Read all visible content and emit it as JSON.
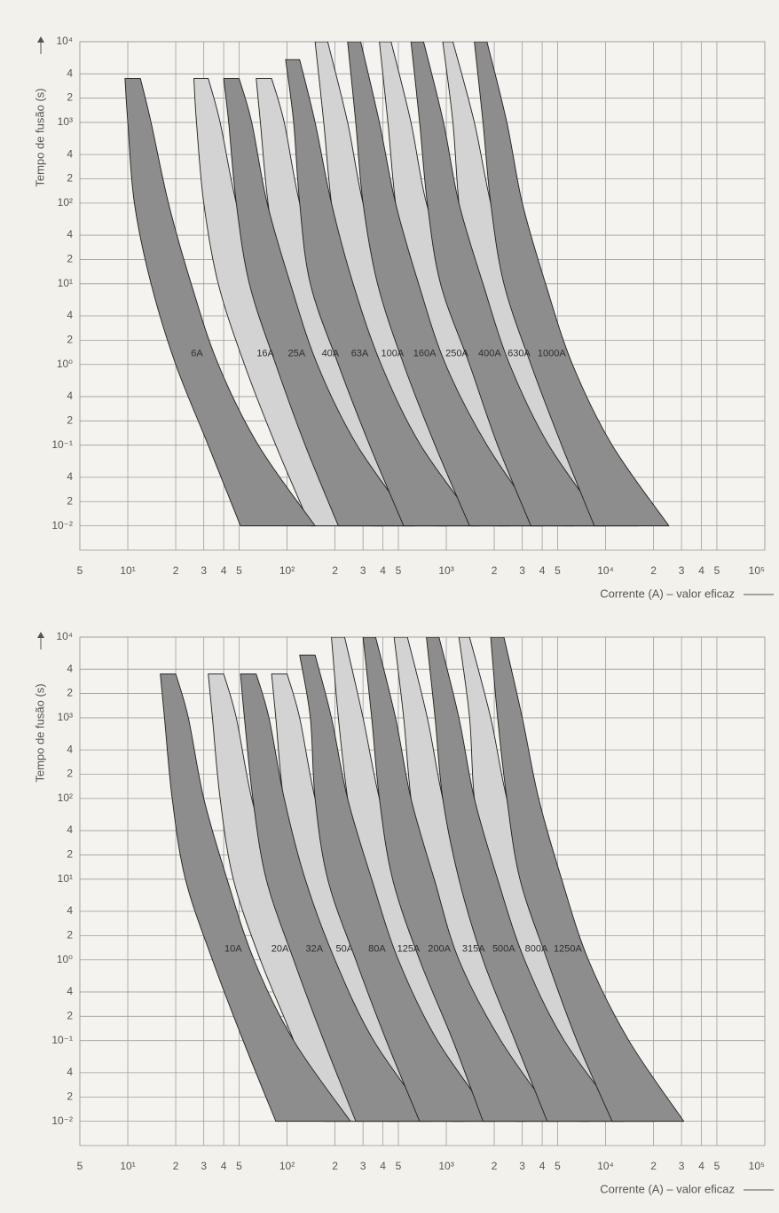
{
  "chart_data": [
    {
      "type": "band",
      "xscale": "log",
      "yscale": "log",
      "grid": true,
      "y_label": "Tempo de fusão (s)",
      "x_label": "Corrente (A) – valor eficaz",
      "xlim": [
        5,
        100000
      ],
      "ylim": [
        0.005,
        10000
      ],
      "xticks": [
        5,
        {
          "value": 10,
          "label": "10¹"
        },
        {
          "value": 20,
          "label": "2"
        },
        {
          "value": 30,
          "label": "3"
        },
        {
          "value": 40,
          "label": "4"
        },
        {
          "value": 50,
          "label": "5"
        },
        {
          "value": 100,
          "label": "10²"
        },
        {
          "value": 200,
          "label": "2"
        },
        {
          "value": 300,
          "label": "3"
        },
        {
          "value": 400,
          "label": "4"
        },
        {
          "value": 500,
          "label": "5"
        },
        {
          "value": 1000,
          "label": "10³"
        },
        {
          "value": 2000,
          "label": "2"
        },
        {
          "value": 3000,
          "label": "3"
        },
        {
          "value": 4000,
          "label": "4"
        },
        {
          "value": 5000,
          "label": "5"
        },
        {
          "value": 10000,
          "label": "10⁴"
        },
        {
          "value": 20000,
          "label": "2"
        },
        {
          "value": 30000,
          "label": "3"
        },
        {
          "value": 40000,
          "label": "4"
        },
        {
          "value": 50000,
          "label": "5"
        },
        {
          "value": 100000,
          "label": "10⁵"
        }
      ],
      "yticks": [
        {
          "value": 10000,
          "label": "10⁴"
        },
        {
          "value": 4000,
          "label": "4"
        },
        {
          "value": 2000,
          "label": "2"
        },
        {
          "value": 1000,
          "label": "10³"
        },
        {
          "value": 400,
          "label": "4"
        },
        {
          "value": 200,
          "label": "2"
        },
        {
          "value": 100,
          "label": "10²"
        },
        {
          "value": 40,
          "label": "4"
        },
        {
          "value": 20,
          "label": "2"
        },
        {
          "value": 10,
          "label": "10¹"
        },
        4,
        2,
        {
          "value": 1,
          "label": "10⁰"
        },
        {
          "value": 0.4,
          "label": "4"
        },
        {
          "value": 0.2,
          "label": "2"
        },
        {
          "value": 0.1,
          "label": "10⁻¹"
        },
        {
          "value": 0.04,
          "label": "4"
        },
        {
          "value": 0.02,
          "label": "2"
        },
        {
          "value": 0.01,
          "label": "10⁻²"
        }
      ],
      "series": [
        {
          "name": "6A",
          "color": "#8d8d8d",
          "y": [
            3500,
            1000,
            100,
            10,
            1,
            0.1,
            0.01
          ],
          "x_min": [
            9.6,
            10,
            11,
            14,
            20,
            32,
            51
          ],
          "x_max": [
            12,
            14,
            18,
            25,
            37,
            66,
            150
          ]
        },
        {
          "name": "16A",
          "color": "#d3d3d3",
          "y": [
            3500,
            1000,
            100,
            10,
            1,
            0.1,
            0.01
          ],
          "x_min": [
            26,
            27,
            30,
            37,
            54,
            85,
            140
          ],
          "x_max": [
            32,
            38,
            48,
            67,
            99,
            180,
            400
          ]
        },
        {
          "name": "25A",
          "color": "#8d8d8d",
          "y": [
            3500,
            1000,
            100,
            10,
            1,
            0.1,
            0.01
          ],
          "x_min": [
            40,
            43,
            48,
            58,
            85,
            130,
            210
          ],
          "x_max": [
            50,
            60,
            75,
            105,
            155,
            275,
            630
          ]
        },
        {
          "name": "40A",
          "color": "#d3d3d3",
          "y": [
            3500,
            1000,
            100,
            10,
            1,
            0.1,
            0.01
          ],
          "x_min": [
            64,
            68,
            76,
            92,
            140,
            210,
            340
          ],
          "x_max": [
            80,
            96,
            120,
            170,
            250,
            440,
            1000
          ]
        },
        {
          "name": "63A",
          "color": "#8d8d8d",
          "y": [
            6000,
            1000,
            100,
            10,
            1,
            0.1,
            0.01
          ],
          "x_min": [
            98,
            110,
            120,
            140,
            210,
            330,
            540
          ],
          "x_max": [
            120,
            150,
            190,
            260,
            390,
            690,
            1600
          ]
        },
        {
          "name": "100A",
          "color": "#d3d3d3",
          "y": [
            10000,
            1000,
            100,
            10,
            1,
            0.1,
            0.01
          ],
          "x_min": [
            150,
            170,
            190,
            230,
            340,
            530,
            850
          ],
          "x_max": [
            180,
            240,
            300,
            420,
            620,
            1100,
            2500
          ]
        },
        {
          "name": "160A",
          "color": "#8d8d8d",
          "y": [
            10000,
            1000,
            100,
            10,
            1,
            0.1,
            0.01
          ],
          "x_min": [
            240,
            270,
            300,
            370,
            540,
            850,
            1400
          ],
          "x_max": [
            290,
            380,
            480,
            670,
            990,
            1800,
            4000
          ]
        },
        {
          "name": "250A",
          "color": "#d3d3d3",
          "y": [
            10000,
            1000,
            100,
            10,
            1,
            0.1,
            0.01
          ],
          "x_min": [
            380,
            430,
            480,
            580,
            850,
            1300,
            2100
          ],
          "x_max": [
            450,
            600,
            750,
            1100,
            1600,
            2800,
            6300
          ]
        },
        {
          "name": "400A",
          "color": "#8d8d8d",
          "y": [
            10000,
            1000,
            100,
            10,
            1,
            0.1,
            0.01
          ],
          "x_min": [
            600,
            680,
            760,
            920,
            1400,
            2100,
            3400
          ],
          "x_max": [
            720,
            960,
            1200,
            1700,
            2500,
            4400,
            10000
          ]
        },
        {
          "name": "630A",
          "color": "#d3d3d3",
          "y": [
            10000,
            1000,
            100,
            10,
            1,
            0.1,
            0.01
          ],
          "x_min": [
            950,
            1100,
            1200,
            1400,
            2100,
            3300,
            5400
          ],
          "x_max": [
            1100,
            1500,
            1900,
            2600,
            3900,
            6900,
            16000
          ]
        },
        {
          "name": "1000A",
          "color": "#8d8d8d",
          "y": [
            10000,
            1000,
            100,
            10,
            1,
            0.1,
            0.01
          ],
          "x_min": [
            1500,
            1700,
            1900,
            2300,
            3400,
            5300,
            8500
          ],
          "x_max": [
            1800,
            2400,
            3000,
            4200,
            6200,
            11000,
            25000
          ]
        }
      ]
    },
    {
      "type": "band",
      "xscale": "log",
      "yscale": "log",
      "grid": true,
      "y_label": "Tempo de fusão (s)",
      "x_label": "Corrente (A) – valor eficaz",
      "xlim": [
        5,
        100000
      ],
      "ylim": [
        0.005,
        10000
      ],
      "xticks": [
        5,
        {
          "value": 10,
          "label": "10¹"
        },
        {
          "value": 20,
          "label": "2"
        },
        {
          "value": 30,
          "label": "3"
        },
        {
          "value": 40,
          "label": "4"
        },
        {
          "value": 50,
          "label": "5"
        },
        {
          "value": 100,
          "label": "10²"
        },
        {
          "value": 200,
          "label": "2"
        },
        {
          "value": 300,
          "label": "3"
        },
        {
          "value": 400,
          "label": "4"
        },
        {
          "value": 500,
          "label": "5"
        },
        {
          "value": 1000,
          "label": "10³"
        },
        {
          "value": 2000,
          "label": "2"
        },
        {
          "value": 3000,
          "label": "3"
        },
        {
          "value": 4000,
          "label": "4"
        },
        {
          "value": 5000,
          "label": "5"
        },
        {
          "value": 10000,
          "label": "10⁴"
        },
        {
          "value": 20000,
          "label": "2"
        },
        {
          "value": 30000,
          "label": "3"
        },
        {
          "value": 40000,
          "label": "4"
        },
        {
          "value": 50000,
          "label": "5"
        },
        {
          "value": 100000,
          "label": "10⁵"
        }
      ],
      "yticks": [
        {
          "value": 10000,
          "label": "10⁴"
        },
        {
          "value": 4000,
          "label": "4"
        },
        {
          "value": 2000,
          "label": "2"
        },
        {
          "value": 1000,
          "label": "10³"
        },
        {
          "value": 400,
          "label": "4"
        },
        {
          "value": 200,
          "label": "2"
        },
        {
          "value": 100,
          "label": "10²"
        },
        {
          "value": 40,
          "label": "4"
        },
        {
          "value": 20,
          "label": "2"
        },
        {
          "value": 10,
          "label": "10¹"
        },
        4,
        2,
        {
          "value": 1,
          "label": "10⁰"
        },
        {
          "value": 0.4,
          "label": "4"
        },
        {
          "value": 0.2,
          "label": "2"
        },
        {
          "value": 0.1,
          "label": "10⁻¹"
        },
        {
          "value": 0.04,
          "label": "4"
        },
        {
          "value": 0.02,
          "label": "2"
        },
        {
          "value": 0.01,
          "label": "10⁻²"
        }
      ],
      "series": [
        {
          "name": "10A",
          "color": "#8d8d8d",
          "y": [
            3500,
            1000,
            100,
            10,
            1,
            0.1,
            0.01
          ],
          "x_min": [
            16,
            17,
            19,
            23,
            34,
            53,
            85
          ],
          "x_max": [
            20,
            24,
            30,
            42,
            62,
            110,
            250
          ]
        },
        {
          "name": "20A",
          "color": "#d3d3d3",
          "y": [
            3500,
            1000,
            100,
            10,
            1,
            0.1,
            0.01
          ],
          "x_min": [
            32,
            34,
            38,
            46,
            68,
            110,
            170
          ],
          "x_max": [
            40,
            48,
            60,
            84,
            120,
            220,
            500
          ]
        },
        {
          "name": "32A",
          "color": "#8d8d8d",
          "y": [
            3500,
            1000,
            100,
            10,
            1,
            0.1,
            0.01
          ],
          "x_min": [
            51,
            54,
            61,
            74,
            110,
            170,
            270
          ],
          "x_max": [
            64,
            77,
            96,
            130,
            200,
            350,
            800
          ]
        },
        {
          "name": "50A",
          "color": "#d3d3d3",
          "y": [
            3500,
            1000,
            100,
            10,
            1,
            0.1,
            0.01
          ],
          "x_min": [
            80,
            85,
            95,
            120,
            170,
            270,
            430
          ],
          "x_max": [
            100,
            120,
            150,
            210,
            310,
            550,
            1300
          ]
        },
        {
          "name": "80A",
          "color": "#8d8d8d",
          "y": [
            6000,
            1000,
            100,
            10,
            1,
            0.1,
            0.01
          ],
          "x_min": [
            120,
            140,
            150,
            180,
            270,
            420,
            680
          ],
          "x_max": [
            150,
            190,
            240,
            340,
            500,
            880,
            2000
          ]
        },
        {
          "name": "125A",
          "color": "#d3d3d3",
          "y": [
            10000,
            1000,
            100,
            10,
            1,
            0.1,
            0.01
          ],
          "x_min": [
            190,
            210,
            240,
            290,
            430,
            660,
            1100
          ],
          "x_max": [
            230,
            300,
            380,
            530,
            780,
            1400,
            3100
          ]
        },
        {
          "name": "200A",
          "color": "#8d8d8d",
          "y": [
            10000,
            1000,
            100,
            10,
            1,
            0.1,
            0.01
          ],
          "x_min": [
            300,
            340,
            380,
            460,
            680,
            1100,
            1700
          ],
          "x_max": [
            360,
            480,
            600,
            840,
            1200,
            2200,
            5000
          ]
        },
        {
          "name": "315A",
          "color": "#d3d3d3",
          "y": [
            10000,
            1000,
            100,
            10,
            1,
            0.1,
            0.01
          ],
          "x_min": [
            470,
            540,
            600,
            720,
            1100,
            1700,
            2700
          ],
          "x_max": [
            570,
            760,
            950,
            1300,
            2000,
            3500,
            7900
          ]
        },
        {
          "name": "500A",
          "color": "#8d8d8d",
          "y": [
            10000,
            1000,
            100,
            10,
            1,
            0.1,
            0.01
          ],
          "x_min": [
            750,
            850,
            950,
            1200,
            1700,
            2700,
            4300
          ],
          "x_max": [
            900,
            1200,
            1500,
            2100,
            3100,
            5500,
            13000
          ]
        },
        {
          "name": "800A",
          "color": "#d3d3d3",
          "y": [
            10000,
            1000,
            100,
            10,
            1,
            0.1,
            0.01
          ],
          "x_min": [
            1200,
            1400,
            1500,
            1800,
            2700,
            4200,
            6800
          ],
          "x_max": [
            1400,
            1900,
            2400,
            3400,
            5000,
            8800,
            20000
          ]
        },
        {
          "name": "1250A",
          "color": "#8d8d8d",
          "y": [
            10000,
            1000,
            100,
            10,
            1,
            0.1,
            0.01
          ],
          "x_min": [
            1900,
            2100,
            2400,
            2900,
            4300,
            6600,
            11000
          ],
          "x_max": [
            2300,
            3000,
            3800,
            5300,
            7800,
            14000,
            31000
          ]
        }
      ]
    }
  ]
}
